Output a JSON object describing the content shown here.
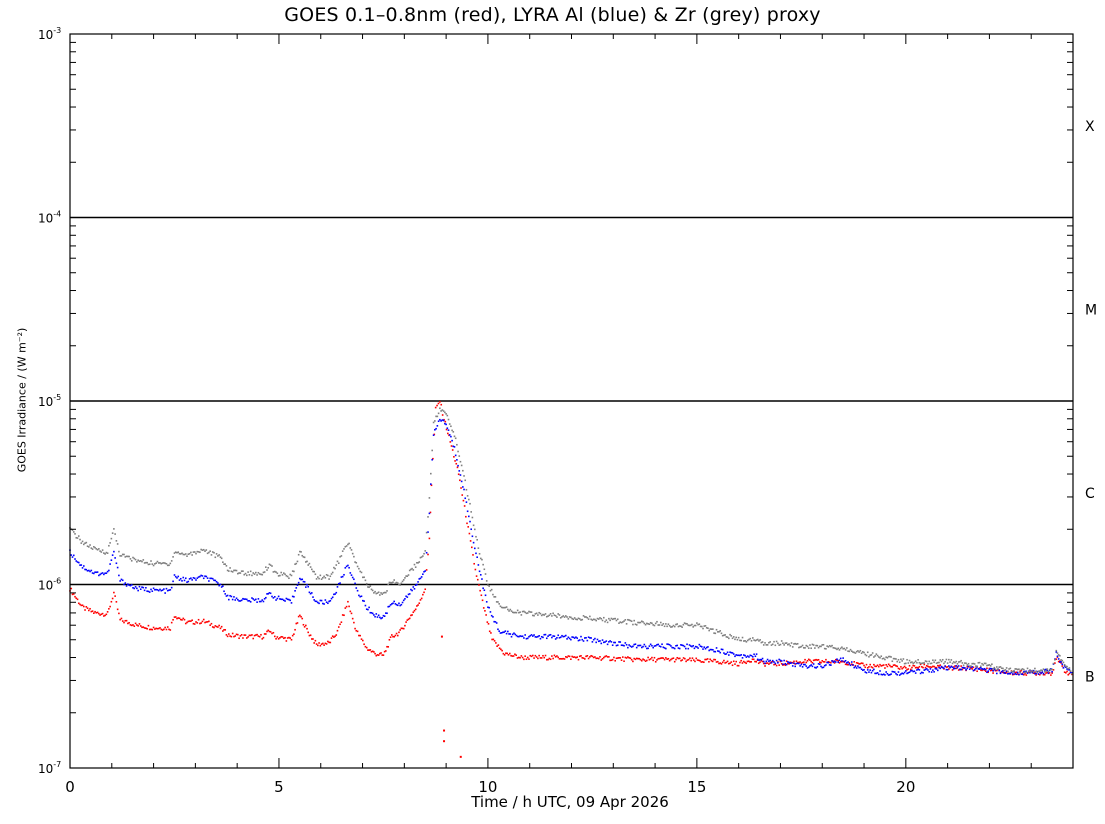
{
  "chart_data": {
    "type": "scatter",
    "title": "GOES 0.1–0.8nm (red), LYRA Al (blue) & Zr (grey) proxy",
    "xlabel": "Time / h UTC, 09 Apr 2026",
    "ylabel": "GOES Irradiance / (W m⁻²)",
    "y_scale": "log",
    "xlim": [
      0,
      24
    ],
    "ylim": [
      1e-07,
      0.001
    ],
    "x_ticks": [
      0,
      5,
      10,
      15,
      20
    ],
    "x_tick_labels": [
      "0",
      "5",
      "10",
      "15",
      "20"
    ],
    "y_ticks": [
      1e-07,
      1e-06,
      1e-05,
      0.0001,
      0.001
    ],
    "y_tick_labels": [
      {
        "base": "10",
        "exp": "-7"
      },
      {
        "base": "10",
        "exp": "-6"
      },
      {
        "base": "10",
        "exp": "-5"
      },
      {
        "base": "10",
        "exp": "-4"
      },
      {
        "base": "10",
        "exp": "-3"
      }
    ],
    "flare_class_lines": [
      1e-06,
      1e-05,
      0.0001
    ],
    "flare_class_labels": [
      {
        "label": "X",
        "y": 0.000316
      },
      {
        "label": "M",
        "y": 3.16e-05
      },
      {
        "label": "C",
        "y": 3.16e-06
      },
      {
        "label": "B",
        "y": 3.16e-07
      }
    ],
    "series": [
      {
        "name": "GOES 0.1–0.8nm",
        "color": "#ff0000",
        "points": [
          [
            0.0,
            9.5e-07
          ],
          [
            0.3,
            7.5e-07
          ],
          [
            0.6,
            7e-07
          ],
          [
            0.9,
            6.9e-07
          ],
          [
            1.05,
            9e-07
          ],
          [
            1.2,
            6.4e-07
          ],
          [
            1.6,
            6e-07
          ],
          [
            2.0,
            5.8e-07
          ],
          [
            2.4,
            5.8e-07
          ],
          [
            2.5,
            6.8e-07
          ],
          [
            2.8,
            6.2e-07
          ],
          [
            3.2,
            6.3e-07
          ],
          [
            3.6,
            5.8e-07
          ],
          [
            3.8,
            5.3e-07
          ],
          [
            4.2,
            5.2e-07
          ],
          [
            4.6,
            5.2e-07
          ],
          [
            4.8,
            5.6e-07
          ],
          [
            4.9,
            5.2e-07
          ],
          [
            5.3,
            5e-07
          ],
          [
            5.5,
            6.8e-07
          ],
          [
            5.7,
            5.5e-07
          ],
          [
            5.9,
            4.7e-07
          ],
          [
            6.2,
            4.8e-07
          ],
          [
            6.4,
            5.5e-07
          ],
          [
            6.65,
            8e-07
          ],
          [
            6.85,
            5.6e-07
          ],
          [
            7.1,
            4.5e-07
          ],
          [
            7.3,
            4.2e-07
          ],
          [
            7.5,
            4.1e-07
          ],
          [
            7.7,
            5.2e-07
          ],
          [
            7.9,
            5.5e-07
          ],
          [
            8.1,
            6.5e-07
          ],
          [
            8.3,
            7.5e-07
          ],
          [
            8.5,
            9.5e-07
          ],
          [
            8.6,
            1.8e-06
          ],
          [
            8.65,
            3.5e-06
          ],
          [
            8.75,
            9e-06
          ],
          [
            8.85,
            1e-05
          ],
          [
            8.95,
            8e-06
          ],
          [
            9.1,
            6e-06
          ],
          [
            9.3,
            4e-06
          ],
          [
            9.5,
            2.2e-06
          ],
          [
            9.7,
            1.2e-06
          ],
          [
            9.9,
            7.5e-07
          ],
          [
            10.1,
            5e-07
          ],
          [
            10.4,
            4.2e-07
          ],
          [
            10.8,
            4e-07
          ],
          [
            11.5,
            4e-07
          ],
          [
            12.5,
            4e-07
          ],
          [
            13.5,
            3.9e-07
          ],
          [
            14.5,
            3.9e-07
          ],
          [
            15.5,
            3.8e-07
          ],
          [
            16.0,
            3.7e-07
          ],
          [
            16.3,
            3.9e-07
          ],
          [
            16.6,
            3.7e-07
          ],
          [
            17.0,
            3.7e-07
          ],
          [
            17.5,
            3.8e-07
          ],
          [
            18.0,
            3.8e-07
          ],
          [
            18.5,
            3.8e-07
          ],
          [
            19.0,
            3.6e-07
          ],
          [
            19.5,
            3.6e-07
          ],
          [
            20.0,
            3.5e-07
          ],
          [
            20.5,
            3.6e-07
          ],
          [
            21.0,
            3.5e-07
          ],
          [
            21.5,
            3.5e-07
          ],
          [
            22.0,
            3.4e-07
          ],
          [
            22.5,
            3.3e-07
          ],
          [
            23.0,
            3.3e-07
          ],
          [
            23.5,
            3.3e-07
          ],
          [
            23.6,
            4e-07
          ],
          [
            23.8,
            3.4e-07
          ],
          [
            24.0,
            3.2e-07
          ]
        ]
      },
      {
        "name": "LYRA Al proxy",
        "color": "#0000ff",
        "points": [
          [
            0.0,
            1.5e-06
          ],
          [
            0.3,
            1.25e-06
          ],
          [
            0.6,
            1.15e-06
          ],
          [
            0.9,
            1.15e-06
          ],
          [
            1.05,
            1.5e-06
          ],
          [
            1.2,
            1.05e-06
          ],
          [
            1.6,
            9.5e-07
          ],
          [
            2.0,
            9.3e-07
          ],
          [
            2.4,
            9.2e-07
          ],
          [
            2.5,
            1.1e-06
          ],
          [
            2.8,
            1.05e-06
          ],
          [
            3.2,
            1.1e-06
          ],
          [
            3.6,
            1e-06
          ],
          [
            3.8,
            8.5e-07
          ],
          [
            4.2,
            8.2e-07
          ],
          [
            4.6,
            8.2e-07
          ],
          [
            4.8,
            9e-07
          ],
          [
            4.9,
            8.5e-07
          ],
          [
            5.3,
            8e-07
          ],
          [
            5.5,
            1.1e-06
          ],
          [
            5.7,
            9.5e-07
          ],
          [
            5.9,
            8e-07
          ],
          [
            6.2,
            8e-07
          ],
          [
            6.4,
            9.5e-07
          ],
          [
            6.65,
            1.3e-06
          ],
          [
            6.85,
            9.5e-07
          ],
          [
            7.1,
            7.5e-07
          ],
          [
            7.3,
            6.8e-07
          ],
          [
            7.5,
            6.6e-07
          ],
          [
            7.7,
            8e-07
          ],
          [
            7.9,
            7.8e-07
          ],
          [
            8.1,
            8.8e-07
          ],
          [
            8.3,
            1e-06
          ],
          [
            8.5,
            1.2e-06
          ],
          [
            8.6,
            2.5e-06
          ],
          [
            8.7,
            6.5e-06
          ],
          [
            8.85,
            8e-06
          ],
          [
            9.0,
            7.5e-06
          ],
          [
            9.2,
            5.5e-06
          ],
          [
            9.4,
            3.5e-06
          ],
          [
            9.6,
            2e-06
          ],
          [
            9.8,
            1.2e-06
          ],
          [
            10.0,
            7.5e-07
          ],
          [
            10.3,
            5.5e-07
          ],
          [
            10.8,
            5.2e-07
          ],
          [
            11.5,
            5.2e-07
          ],
          [
            12.5,
            5e-07
          ],
          [
            13.5,
            4.6e-07
          ],
          [
            14.5,
            4.6e-07
          ],
          [
            15.0,
            4.6e-07
          ],
          [
            15.5,
            4.4e-07
          ],
          [
            16.0,
            4.1e-07
          ],
          [
            16.4,
            4.1e-07
          ],
          [
            16.6,
            3.8e-07
          ],
          [
            17.0,
            3.8e-07
          ],
          [
            17.5,
            3.6e-07
          ],
          [
            18.0,
            3.6e-07
          ],
          [
            18.5,
            3.9e-07
          ],
          [
            19.0,
            3.4e-07
          ],
          [
            19.5,
            3.3e-07
          ],
          [
            20.0,
            3.3e-07
          ],
          [
            20.5,
            3.4e-07
          ],
          [
            21.0,
            3.5e-07
          ],
          [
            21.5,
            3.5e-07
          ],
          [
            22.0,
            3.4e-07
          ],
          [
            22.5,
            3.3e-07
          ],
          [
            23.0,
            3.3e-07
          ],
          [
            23.5,
            3.4e-07
          ],
          [
            23.6,
            4.2e-07
          ],
          [
            23.8,
            3.5e-07
          ],
          [
            24.0,
            3.3e-07
          ]
        ]
      },
      {
        "name": "LYRA Zr proxy",
        "color": "#808080",
        "points": [
          [
            0.0,
            2e-06
          ],
          [
            0.3,
            1.7e-06
          ],
          [
            0.6,
            1.55e-06
          ],
          [
            0.9,
            1.5e-06
          ],
          [
            1.05,
            2e-06
          ],
          [
            1.2,
            1.45e-06
          ],
          [
            1.6,
            1.35e-06
          ],
          [
            2.0,
            1.3e-06
          ],
          [
            2.4,
            1.3e-06
          ],
          [
            2.5,
            1.5e-06
          ],
          [
            2.8,
            1.45e-06
          ],
          [
            3.2,
            1.55e-06
          ],
          [
            3.6,
            1.4e-06
          ],
          [
            3.8,
            1.2e-06
          ],
          [
            4.2,
            1.15e-06
          ],
          [
            4.6,
            1.15e-06
          ],
          [
            4.8,
            1.3e-06
          ],
          [
            4.9,
            1.15e-06
          ],
          [
            5.3,
            1.1e-06
          ],
          [
            5.5,
            1.5e-06
          ],
          [
            5.7,
            1.3e-06
          ],
          [
            5.9,
            1.1e-06
          ],
          [
            6.2,
            1.1e-06
          ],
          [
            6.4,
            1.3e-06
          ],
          [
            6.65,
            1.7e-06
          ],
          [
            6.85,
            1.3e-06
          ],
          [
            7.1,
            1e-06
          ],
          [
            7.3,
            9e-07
          ],
          [
            7.5,
            8.8e-07
          ],
          [
            7.7,
            1.05e-06
          ],
          [
            7.9,
            1e-06
          ],
          [
            8.1,
            1.15e-06
          ],
          [
            8.3,
            1.3e-06
          ],
          [
            8.5,
            1.5e-06
          ],
          [
            8.6,
            3e-06
          ],
          [
            8.7,
            7.5e-06
          ],
          [
            8.85,
            9e-06
          ],
          [
            9.0,
            8.5e-06
          ],
          [
            9.2,
            6.5e-06
          ],
          [
            9.4,
            4.2e-06
          ],
          [
            9.6,
            2.5e-06
          ],
          [
            9.8,
            1.5e-06
          ],
          [
            10.0,
            1e-06
          ],
          [
            10.3,
            7.5e-07
          ],
          [
            10.8,
            7e-07
          ],
          [
            11.5,
            6.8e-07
          ],
          [
            12.5,
            6.5e-07
          ],
          [
            13.5,
            6.2e-07
          ],
          [
            14.5,
            6e-07
          ],
          [
            15.0,
            6e-07
          ],
          [
            15.5,
            5.5e-07
          ],
          [
            16.0,
            5e-07
          ],
          [
            16.4,
            5e-07
          ],
          [
            16.6,
            4.8e-07
          ],
          [
            17.0,
            4.8e-07
          ],
          [
            17.5,
            4.6e-07
          ],
          [
            18.0,
            4.6e-07
          ],
          [
            18.5,
            4.5e-07
          ],
          [
            19.0,
            4.2e-07
          ],
          [
            19.5,
            4e-07
          ],
          [
            20.0,
            3.8e-07
          ],
          [
            20.5,
            3.8e-07
          ],
          [
            21.0,
            3.8e-07
          ],
          [
            21.5,
            3.7e-07
          ],
          [
            22.0,
            3.6e-07
          ],
          [
            22.5,
            3.4e-07
          ],
          [
            23.0,
            3.4e-07
          ],
          [
            23.5,
            3.4e-07
          ],
          [
            23.6,
            4.3e-07
          ],
          [
            23.8,
            3.6e-07
          ],
          [
            24.0,
            3.3e-07
          ]
        ]
      }
    ],
    "outliers": [
      {
        "color": "#ff0000",
        "points": [
          [
            8.95,
            1.4e-07
          ],
          [
            8.95,
            1.6e-07
          ],
          [
            9.35,
            1.15e-07
          ],
          [
            8.9,
            5.2e-07
          ]
        ]
      }
    ]
  }
}
